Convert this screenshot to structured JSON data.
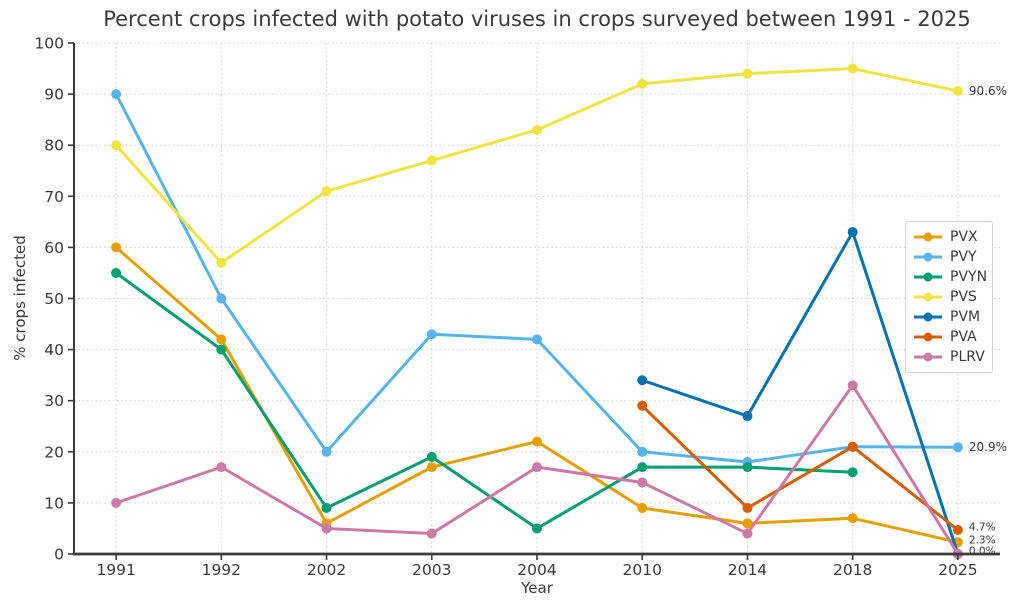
{
  "chart_data": {
    "type": "line",
    "title": "Percent crops infected with potato viruses in crops surveyed between 1991 - 2025",
    "xlabel": "Year",
    "ylabel": "% crops infected",
    "ylim": [
      0,
      100
    ],
    "yticks": [
      0,
      10,
      20,
      30,
      40,
      50,
      60,
      70,
      80,
      90,
      100
    ],
    "grid": true,
    "legend_position": "center right",
    "categories": [
      "1991",
      "1992",
      "2002",
      "2003",
      "2004",
      "2010",
      "2014",
      "2018",
      "2025"
    ],
    "series": [
      {
        "name": "PVX",
        "color": "#E69F00",
        "values": [
          60,
          42,
          6,
          17,
          22,
          9,
          6,
          7,
          2.3
        ]
      },
      {
        "name": "PVY",
        "color": "#56B4E9",
        "values": [
          90,
          50,
          20,
          43,
          42,
          20,
          18,
          21,
          20.9
        ]
      },
      {
        "name": "PVYN",
        "color": "#009E73",
        "values": [
          55,
          40,
          9,
          19,
          5,
          17,
          17,
          16,
          null
        ]
      },
      {
        "name": "PVS",
        "color": "#F0E442",
        "values": [
          80,
          57,
          71,
          77,
          83,
          92,
          94,
          95,
          90.6
        ]
      },
      {
        "name": "PVM",
        "color": "#0072B2",
        "values": [
          null,
          null,
          null,
          null,
          null,
          34,
          27,
          63,
          0
        ]
      },
      {
        "name": "PVA",
        "color": "#D55E00",
        "values": [
          null,
          null,
          null,
          null,
          null,
          29,
          9,
          21,
          4.7
        ]
      },
      {
        "name": "PLRV",
        "color": "#CC79A7",
        "values": [
          10,
          17,
          5,
          4,
          17,
          14,
          4,
          33,
          0
        ]
      }
    ],
    "annotations": [
      {
        "text": "90.6%",
        "label_y": 90.6,
        "small": false
      },
      {
        "text": "20.9%",
        "label_y": 20.9,
        "small": false
      },
      {
        "text": "4.7%",
        "label_y": 5.3,
        "small": true
      },
      {
        "text": "2.3%",
        "label_y": 2.7,
        "small": true
      },
      {
        "text": "0.0%",
        "label_y": 0.6,
        "small": true
      }
    ],
    "colors": {
      "text": "#3a3a3a",
      "spine": "#3b3b3b",
      "grid": "#cdcdcd",
      "background": "#ffffff"
    }
  }
}
